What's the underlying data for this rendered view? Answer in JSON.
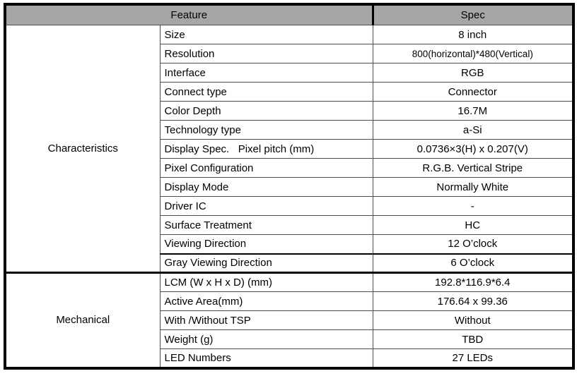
{
  "table": {
    "header": {
      "feature": "Feature",
      "spec": "Spec"
    },
    "groups": [
      {
        "label": "Characteristics"
      },
      {
        "label": "Mechanical"
      }
    ],
    "rows": [
      {
        "feature": "Size",
        "spec": "8 inch"
      },
      {
        "feature": "Resolution",
        "spec": "800(horizontal)*480(Vertical)"
      },
      {
        "feature": "Interface",
        "spec": "RGB"
      },
      {
        "feature": "Connect type",
        "spec": "Connector"
      },
      {
        "feature": "Color Depth",
        "spec": "16.7M"
      },
      {
        "feature": "Technology type",
        "spec": "a-Si"
      },
      {
        "feature": "Display Spec.   Pixel pitch (mm)",
        "spec": "0.0736×3(H) x 0.207(V)"
      },
      {
        "feature": "Pixel Configuration",
        "spec": "R.G.B. Vertical Stripe"
      },
      {
        "feature": "Display Mode",
        "spec": "Normally White"
      },
      {
        "feature": "Driver IC",
        "spec": "-"
      },
      {
        "feature": "Surface Treatment",
        "spec": "HC"
      },
      {
        "feature": "Viewing Direction",
        "spec": "12 O’clock"
      },
      {
        "feature": "Gray Viewing Direction",
        "spec": "6 O’clock"
      },
      {
        "feature": "LCM (W x H x D) (mm)",
        "spec": "192.8*116.9*6.4"
      },
      {
        "feature": "Active Area(mm)",
        "spec": "176.64 x 99.36"
      },
      {
        "feature": "With /Without TSP",
        "spec": "Without"
      },
      {
        "feature": "Weight (g)",
        "spec": "TBD"
      },
      {
        "feature": "LED Numbers",
        "spec": "27 LEDs"
      }
    ],
    "colors": {
      "header_bg": "#a6a6a6",
      "border": "#000000",
      "text": "#000000"
    }
  }
}
